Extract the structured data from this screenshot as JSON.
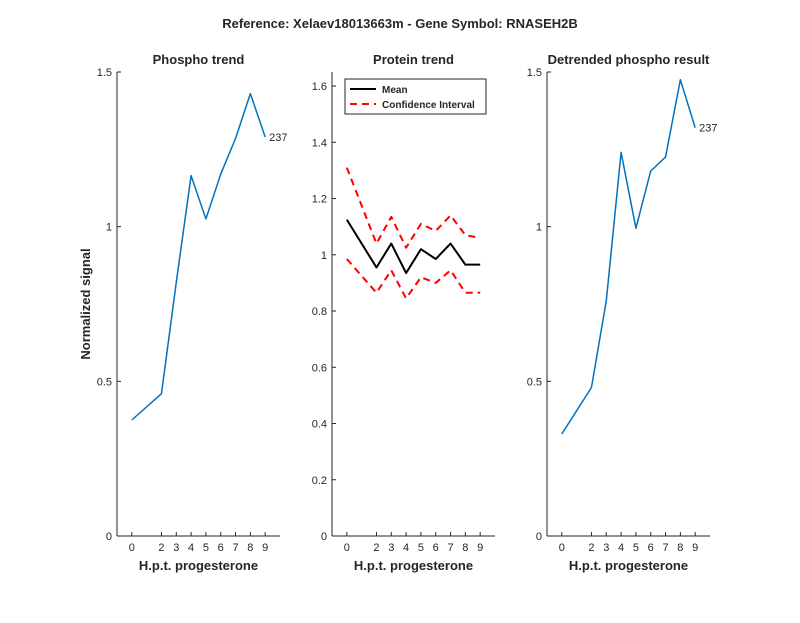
{
  "figure": {
    "title": "Reference:  Xelaev18013663m - Gene Symbol:  RNASEH2B"
  },
  "chart_data": [
    {
      "type": "line",
      "title": "Phospho trend",
      "xlabel": "H.p.t. progesterone",
      "ylabel": "Normalized signal",
      "x": [
        0,
        2,
        3,
        4,
        5,
        6,
        7,
        8,
        9
      ],
      "xticks": [
        "0",
        "2",
        "3",
        "4",
        "5",
        "6",
        "7",
        "8",
        "9"
      ],
      "ylim": [
        0,
        1.5
      ],
      "yticks": [
        "0",
        "0.5",
        "1",
        "1.5"
      ],
      "series": [
        {
          "values": [
            0.375,
            0.46,
            0.82,
            1.165,
            1.025,
            1.17,
            1.285,
            1.43,
            1.29
          ],
          "color": "#0072BD"
        }
      ],
      "end_label": "237"
    },
    {
      "type": "line",
      "title": "Protein trend",
      "xlabel": "H.p.t. progesterone",
      "ylabel": "",
      "x": [
        0,
        2,
        3,
        4,
        5,
        6,
        7,
        8,
        9
      ],
      "xticks": [
        "0",
        "2",
        "3",
        "4",
        "5",
        "6",
        "7",
        "8",
        "9"
      ],
      "ylim": [
        0,
        1.65
      ],
      "yticks": [
        "0",
        "0.2",
        "0.4",
        "0.6",
        "0.8",
        "1",
        "1.2",
        "1.4",
        "1.6"
      ],
      "legend": {
        "placement": "top-left"
      },
      "series": [
        {
          "name": "Mean",
          "values": [
            1.125,
            0.955,
            1.04,
            0.935,
            1.02,
            0.985,
            1.04,
            0.965,
            0.965
          ],
          "color": "#000000",
          "style": "solid"
        },
        {
          "name": "Confidence Interval",
          "values": [
            1.31,
            1.04,
            1.135,
            1.025,
            1.11,
            1.085,
            1.14,
            1.07,
            1.06
          ],
          "color": "#FF0000",
          "style": "dashed"
        },
        {
          "values": [
            0.985,
            0.865,
            0.945,
            0.845,
            0.92,
            0.9,
            0.945,
            0.865,
            0.865
          ],
          "color": "#FF0000",
          "style": "dashed"
        }
      ]
    },
    {
      "type": "line",
      "title": "Detrended phospho result",
      "xlabel": "H.p.t. progesterone",
      "ylabel": "",
      "x": [
        0,
        2,
        3,
        4,
        5,
        6,
        7,
        8,
        9
      ],
      "xticks": [
        "0",
        "2",
        "3",
        "4",
        "5",
        "6",
        "7",
        "8",
        "9"
      ],
      "ylim": [
        0,
        1.5
      ],
      "yticks": [
        "0",
        "0.5",
        "1",
        "1.5"
      ],
      "series": [
        {
          "values": [
            0.33,
            0.48,
            0.76,
            1.24,
            0.995,
            1.18,
            1.225,
            1.475,
            1.32
          ],
          "color": "#0072BD"
        }
      ],
      "end_label": "237"
    }
  ]
}
